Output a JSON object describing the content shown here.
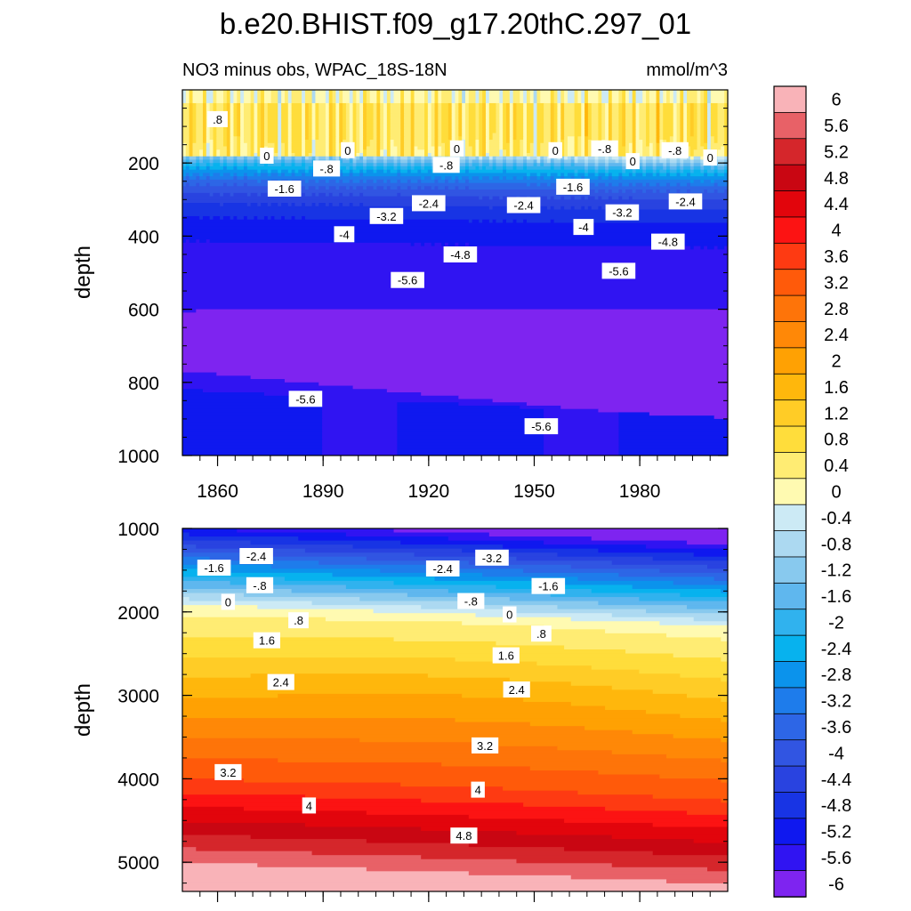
{
  "title": "b.e20.BHIST.f09_g17.20thC.297_01",
  "subtitle_left": "NO3 minus obs, WPAC_18S-18N",
  "subtitle_right": "mmol/m^3",
  "chart_data": {
    "type": "heatmap",
    "colorbar": {
      "labels": [
        "6",
        "5.6",
        "5.2",
        "4.8",
        "4.4",
        "4",
        "3.6",
        "3.2",
        "2.8",
        "2.4",
        "2",
        "1.6",
        "1.2",
        "0.8",
        "0.4",
        "0",
        "-0.4",
        "-0.8",
        "-1.2",
        "-1.6",
        "-2",
        "-2.4",
        "-2.8",
        "-3.2",
        "-3.6",
        "-4",
        "-4.4",
        "-4.8",
        "-5.2",
        "-5.6",
        "-6"
      ],
      "colors": [
        "#F9B3B8",
        "#E86167",
        "#D5262B",
        "#C90612",
        "#E2050C",
        "#FC1313",
        "#FE3A12",
        "#FF5A0A",
        "#FE7409",
        "#FF8807",
        "#FFA103",
        "#FFB70C",
        "#FFCC26",
        "#FFDD3B",
        "#FFEC73",
        "#FFFAB1",
        "#CCEAF5",
        "#ACD9F1",
        "#88C9EE",
        "#5FB7EE",
        "#30B2EE",
        "#07B2EE",
        "#0B93EC",
        "#1E7CEB",
        "#2D66E6",
        "#3155E2",
        "#2943E0",
        "#1834E4",
        "#0F18EF",
        "#3014F2",
        "#7E24F0"
      ]
    },
    "panels": [
      {
        "name": "upper",
        "ylabel": "depth",
        "x_range": [
          1850,
          2005
        ],
        "y_range": [
          0,
          1000
        ],
        "y_inverted": true,
        "x_ticks": [
          "1860",
          "1890",
          "1920",
          "1950",
          "1980"
        ],
        "y_ticks": [
          "200",
          "400",
          "600",
          "800",
          "1000"
        ],
        "contour_labels": [
          {
            "text": ".8",
            "x": 1860,
            "y": 80
          },
          {
            "text": "0",
            "x": 1874,
            "y": 180
          },
          {
            "text": "0",
            "x": 1897,
            "y": 165
          },
          {
            "text": "0",
            "x": 1928,
            "y": 160
          },
          {
            "text": "0",
            "x": 1956,
            "y": 165
          },
          {
            "text": "0",
            "x": 1978,
            "y": 195
          },
          {
            "text": "0",
            "x": 2000,
            "y": 185
          },
          {
            "text": "-.8",
            "x": 1891,
            "y": 215
          },
          {
            "text": "-.8",
            "x": 1925,
            "y": 205
          },
          {
            "text": "-.8",
            "x": 1970,
            "y": 160
          },
          {
            "text": "-.8",
            "x": 1990,
            "y": 165
          },
          {
            "text": "-1.6",
            "x": 1879,
            "y": 270
          },
          {
            "text": "-1.6",
            "x": 1961,
            "y": 265
          },
          {
            "text": "-2.4",
            "x": 1920,
            "y": 310
          },
          {
            "text": "-2.4",
            "x": 1947,
            "y": 315
          },
          {
            "text": "-2.4",
            "x": 1993,
            "y": 305
          },
          {
            "text": "-3.2",
            "x": 1908,
            "y": 345
          },
          {
            "text": "-3.2",
            "x": 1975,
            "y": 335
          },
          {
            "text": "-4",
            "x": 1896,
            "y": 395
          },
          {
            "text": "-4",
            "x": 1964,
            "y": 375
          },
          {
            "text": "-4.8",
            "x": 1929,
            "y": 450
          },
          {
            "text": "-4.8",
            "x": 1988,
            "y": 415
          },
          {
            "text": "-5.6",
            "x": 1914,
            "y": 520
          },
          {
            "text": "-5.6",
            "x": 1974,
            "y": 495
          },
          {
            "text": "-5.6",
            "x": 1885,
            "y": 845
          },
          {
            "text": "-5.6",
            "x": 1952,
            "y": 920
          }
        ]
      },
      {
        "name": "lower",
        "ylabel": "depth",
        "x_range": [
          1850,
          2005
        ],
        "y_range": [
          1000,
          5350
        ],
        "y_inverted": true,
        "y_ticks": [
          "1000",
          "2000",
          "3000",
          "4000",
          "5000"
        ],
        "contour_labels": [
          {
            "text": "-2.4",
            "x": 1871,
            "y": 1330
          },
          {
            "text": "-3.2",
            "x": 1938,
            "y": 1350
          },
          {
            "text": "-1.6",
            "x": 1859,
            "y": 1470
          },
          {
            "text": "-2.4",
            "x": 1924,
            "y": 1480
          },
          {
            "text": "-.8",
            "x": 1872,
            "y": 1680
          },
          {
            "text": "-1.6",
            "x": 1954,
            "y": 1690
          },
          {
            "text": "0",
            "x": 1863,
            "y": 1880
          },
          {
            "text": "-.8",
            "x": 1932,
            "y": 1870
          },
          {
            "text": "0",
            "x": 1943,
            "y": 2030
          },
          {
            "text": ".8",
            "x": 1883,
            "y": 2100
          },
          {
            "text": ".8",
            "x": 1952,
            "y": 2260
          },
          {
            "text": "1.6",
            "x": 1874,
            "y": 2340
          },
          {
            "text": "1.6",
            "x": 1942,
            "y": 2520
          },
          {
            "text": "2.4",
            "x": 1878,
            "y": 2840
          },
          {
            "text": "2.4",
            "x": 1945,
            "y": 2930
          },
          {
            "text": "3.2",
            "x": 1863,
            "y": 3920
          },
          {
            "text": "3.2",
            "x": 1936,
            "y": 3600
          },
          {
            "text": "4",
            "x": 1886,
            "y": 4320
          },
          {
            "text": "4",
            "x": 1934,
            "y": 4130
          },
          {
            "text": "4.8",
            "x": 1930,
            "y": 4680
          }
        ]
      }
    ]
  }
}
